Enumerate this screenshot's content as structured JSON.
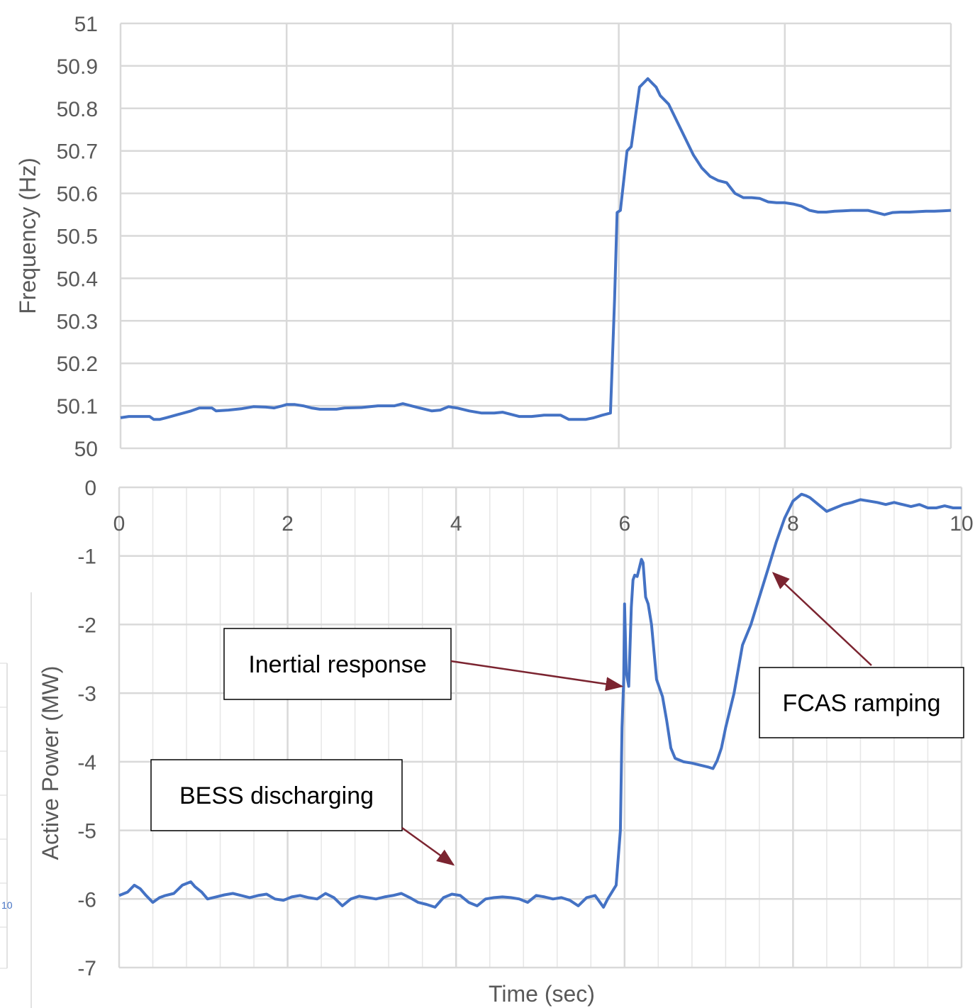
{
  "colors": {
    "series": "#4472c4",
    "grid": "#d9d9d9",
    "minor_grid": "#e6e6e6",
    "axis": "#bfbfbf",
    "tick_text": "#595959",
    "arrow": "#7b2430"
  },
  "chart_data": [
    {
      "type": "line",
      "title": "",
      "xlabel": "",
      "ylabel": "Frequency (Hz)",
      "xlim": [
        0,
        10
      ],
      "ylim": [
        50,
        51
      ],
      "x_ticks": [
        "0",
        "2",
        "4",
        "6",
        "8",
        "10"
      ],
      "y_ticks": [
        "50",
        "50.1",
        "50.2",
        "50.3",
        "50.4",
        "50.5",
        "50.6",
        "50.7",
        "50.8",
        "50.9",
        "51"
      ],
      "grid": true,
      "series": [
        {
          "x": [
            0,
            0.1,
            0.35,
            0.4,
            0.47,
            0.55,
            0.7,
            0.85,
            0.95,
            1.1,
            1.15,
            1.3,
            1.45,
            1.6,
            1.75,
            1.85,
            1.95,
            2.0,
            2.1,
            2.2,
            2.3,
            2.4,
            2.6,
            2.7,
            2.9,
            3.1,
            3.3,
            3.4,
            3.5,
            3.6,
            3.75,
            3.85,
            3.95,
            4.05,
            4.2,
            4.35,
            4.5,
            4.6,
            4.7,
            4.8,
            4.95,
            5.1,
            5.3,
            5.4,
            5.5,
            5.6,
            5.7,
            5.8,
            5.9,
            5.95,
            5.98,
            6.02,
            6.1,
            6.15,
            6.2,
            6.25,
            6.3,
            6.35,
            6.4,
            6.45,
            6.5,
            6.6,
            6.7,
            6.8,
            6.9,
            7.0,
            7.1,
            7.2,
            7.3,
            7.4,
            7.5,
            7.6,
            7.7,
            7.8,
            7.9,
            8.0,
            8.1,
            8.2,
            8.3,
            8.4,
            8.5,
            8.6,
            8.7,
            8.8,
            8.9,
            9.0,
            9.1,
            9.2,
            9.3,
            9.4,
            9.5,
            9.6,
            9.7,
            9.8,
            9.9,
            10.0
          ],
          "y": [
            50.072,
            50.075,
            50.075,
            50.068,
            50.068,
            50.072,
            50.08,
            50.088,
            50.095,
            50.095,
            50.088,
            50.09,
            50.093,
            50.098,
            50.097,
            50.095,
            50.1,
            50.103,
            50.103,
            50.1,
            50.095,
            50.092,
            50.092,
            50.095,
            50.096,
            50.1,
            50.1,
            50.105,
            50.1,
            50.095,
            50.088,
            50.09,
            50.098,
            50.095,
            50.088,
            50.083,
            50.083,
            50.085,
            50.08,
            50.075,
            50.075,
            50.078,
            50.078,
            50.068,
            50.068,
            50.068,
            50.072,
            50.078,
            50.083,
            50.35,
            50.555,
            50.56,
            50.7,
            50.71,
            50.78,
            50.85,
            50.86,
            50.87,
            50.86,
            50.85,
            50.83,
            50.81,
            50.77,
            50.73,
            50.69,
            50.66,
            50.64,
            50.63,
            50.625,
            50.6,
            50.59,
            50.59,
            50.588,
            50.58,
            50.578,
            50.578,
            50.575,
            50.57,
            50.56,
            50.556,
            50.556,
            50.558,
            50.559,
            50.56,
            50.56,
            50.56,
            50.555,
            50.55,
            50.555,
            50.556,
            50.556,
            50.557,
            50.558,
            50.558,
            50.559,
            50.56
          ]
        }
      ]
    },
    {
      "type": "line",
      "title": "",
      "xlabel": "Time (sec)",
      "ylabel": "Active Power (MW)",
      "xlim": [
        0,
        10
      ],
      "ylim": [
        -7,
        0
      ],
      "x_ticks": [
        "0",
        "2",
        "4",
        "6",
        "8",
        "10"
      ],
      "y_ticks": [
        "0",
        "-1",
        "-2",
        "-3",
        "-4",
        "-5",
        "-6",
        "-7"
      ],
      "grid": true,
      "series": [
        {
          "x": [
            0,
            0.1,
            0.18,
            0.25,
            0.32,
            0.4,
            0.48,
            0.55,
            0.65,
            0.75,
            0.85,
            0.9,
            0.98,
            1.05,
            1.15,
            1.25,
            1.35,
            1.45,
            1.55,
            1.65,
            1.75,
            1.85,
            1.95,
            2.05,
            2.15,
            2.25,
            2.35,
            2.45,
            2.55,
            2.65,
            2.75,
            2.85,
            2.95,
            3.05,
            3.15,
            3.25,
            3.35,
            3.45,
            3.55,
            3.65,
            3.75,
            3.85,
            3.95,
            4.05,
            4.15,
            4.25,
            4.35,
            4.45,
            4.55,
            4.65,
            4.75,
            4.85,
            4.95,
            5.05,
            5.15,
            5.25,
            5.35,
            5.45,
            5.55,
            5.65,
            5.75,
            5.8,
            5.85,
            5.9,
            5.95,
            5.97,
            5.99,
            6.0,
            6.02,
            6.05,
            6.08,
            6.1,
            6.12,
            6.15,
            6.18,
            6.2,
            6.22,
            6.25,
            6.28,
            6.32,
            6.38,
            6.45,
            6.5,
            6.55,
            6.6,
            6.7,
            6.8,
            6.9,
            7.0,
            7.05,
            7.1,
            7.15,
            7.2,
            7.3,
            7.4,
            7.5,
            7.6,
            7.7,
            7.8,
            7.9,
            8.0,
            8.1,
            8.15,
            8.2,
            8.3,
            8.4,
            8.5,
            8.6,
            8.7,
            8.8,
            8.9,
            9.0,
            9.1,
            9.2,
            9.3,
            9.4,
            9.5,
            9.6,
            9.7,
            9.8,
            9.9,
            10.0
          ],
          "y": [
            -5.95,
            -5.9,
            -5.8,
            -5.85,
            -5.95,
            -6.05,
            -5.98,
            -5.95,
            -5.92,
            -5.8,
            -5.75,
            -5.82,
            -5.9,
            -6.0,
            -5.97,
            -5.94,
            -5.92,
            -5.95,
            -5.98,
            -5.95,
            -5.93,
            -6.0,
            -6.02,
            -5.97,
            -5.95,
            -5.98,
            -6.0,
            -5.92,
            -5.98,
            -6.1,
            -6.0,
            -5.96,
            -5.98,
            -6.0,
            -5.97,
            -5.95,
            -5.92,
            -5.98,
            -6.05,
            -6.08,
            -6.12,
            -5.98,
            -5.93,
            -5.95,
            -6.05,
            -6.1,
            -6.0,
            -5.98,
            -5.97,
            -5.98,
            -6.0,
            -6.05,
            -5.95,
            -5.97,
            -6.0,
            -5.98,
            -6.02,
            -6.1,
            -5.98,
            -5.95,
            -6.12,
            -6.0,
            -5.9,
            -5.8,
            -5.0,
            -3.5,
            -2.8,
            -1.7,
            -2.7,
            -2.9,
            -1.75,
            -1.35,
            -1.28,
            -1.3,
            -1.15,
            -1.05,
            -1.1,
            -1.6,
            -1.7,
            -2.0,
            -2.8,
            -3.05,
            -3.4,
            -3.8,
            -3.95,
            -4.0,
            -4.02,
            -4.05,
            -4.08,
            -4.1,
            -3.98,
            -3.8,
            -3.5,
            -3.0,
            -2.3,
            -2.0,
            -1.6,
            -1.2,
            -0.8,
            -0.45,
            -0.2,
            -0.1,
            -0.12,
            -0.15,
            -0.25,
            -0.35,
            -0.3,
            -0.25,
            -0.22,
            -0.18,
            -0.2,
            -0.22,
            -0.25,
            -0.22,
            -0.25,
            -0.28,
            -0.25,
            -0.3,
            -0.3,
            -0.27,
            -0.3,
            -0.3
          ]
        }
      ],
      "annotations": [
        {
          "text": "Inertial response",
          "target_x": 6.0,
          "target_y": -2.9
        },
        {
          "text": "BESS discharging",
          "target_x": 4.0,
          "target_y": -5.5
        },
        {
          "text": "FCAS ramping",
          "target_x": 7.8,
          "target_y": -1.25
        }
      ]
    }
  ],
  "fragment": {
    "tick": "10"
  }
}
